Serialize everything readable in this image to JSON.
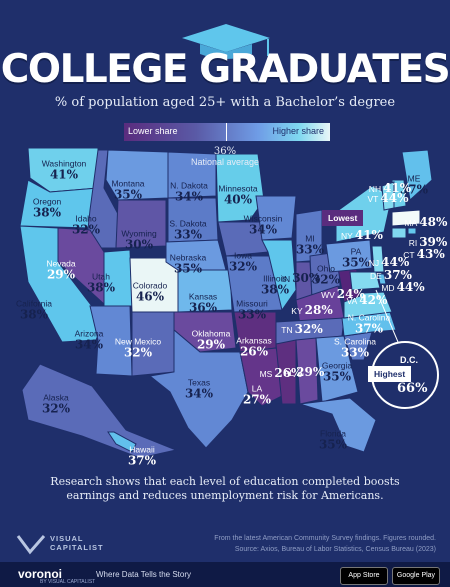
{
  "header": {
    "title": "COLLEGE GRADUATES",
    "subtitle": "% of population aged 25+ with a Bachelor’s degree"
  },
  "legend": {
    "low_label": "Lower share",
    "high_label": "Higher share",
    "national_value": "36%",
    "national_label": "National average"
  },
  "badges": {
    "lowest": "Lowest",
    "highest": "Highest"
  },
  "states": [
    {
      "name": "Washington",
      "value": "41%",
      "color": "#6fd0ec",
      "text": "dark"
    },
    {
      "name": "Oregon",
      "value": "38%",
      "color": "#5fc6ec",
      "text": "dark"
    },
    {
      "name": "California",
      "value": "38%",
      "color": "#5fc6ec",
      "text": "dark"
    },
    {
      "name": "Idaho",
      "value": "32%",
      "color": "#5a6bb8",
      "text": "dark"
    },
    {
      "name": "Nevada",
      "value": "29%",
      "color": "#6a4a9e",
      "text": "light"
    },
    {
      "name": "Montana",
      "value": "35%",
      "color": "#6b9ae0",
      "text": "dark"
    },
    {
      "name": "Wyoming",
      "value": "30%",
      "color": "#5f56a6",
      "text": "dark"
    },
    {
      "name": "Utah",
      "value": "38%",
      "color": "#5fc6ec",
      "text": "dark"
    },
    {
      "name": "Arizona",
      "value": "34%",
      "color": "#6288d4",
      "text": "dark"
    },
    {
      "name": "Colorado",
      "value": "46%",
      "color": "#eaf6f6",
      "text": "dark"
    },
    {
      "name": "New Mexico",
      "value": "32%",
      "color": "#5a6bb8",
      "text": "light"
    },
    {
      "name": "N. Dakota",
      "value": "34%",
      "color": "#6288d4",
      "text": "dark"
    },
    {
      "name": "S. Dakota",
      "value": "33%",
      "color": "#5c7bc8",
      "text": "dark"
    },
    {
      "name": "Nebraska",
      "value": "35%",
      "color": "#6b9ae0",
      "text": "dark"
    },
    {
      "name": "Kansas",
      "value": "36%",
      "color": "#6fb8ec",
      "text": "dark"
    },
    {
      "name": "Oklahoma",
      "value": "29%",
      "color": "#6a4a9e",
      "text": "light"
    },
    {
      "name": "Texas",
      "value": "34%",
      "color": "#6288d4",
      "text": "dark"
    },
    {
      "name": "Minnesota",
      "value": "40%",
      "color": "#66cdea",
      "text": "dark"
    },
    {
      "name": "Iowa",
      "value": "32%",
      "color": "#5a6bb8",
      "text": "dark"
    },
    {
      "name": "Missouri",
      "value": "33%",
      "color": "#5c7bc8",
      "text": "dark"
    },
    {
      "name": "Arkansas",
      "value": "26%",
      "color": "#5e2f80",
      "text": "light"
    },
    {
      "name": "LA",
      "value": "27%",
      "color": "#64358a",
      "text": "light"
    },
    {
      "name": "Wisconsin",
      "value": "34%",
      "color": "#6288d4",
      "text": "dark"
    },
    {
      "name": "Illinois",
      "value": "38%",
      "color": "#5fc6ec",
      "text": "dark"
    },
    {
      "name": "MI",
      "value": "33%",
      "color": "#5c7bc8",
      "text": "dark"
    },
    {
      "name": "IN",
      "value": "30%",
      "color": "#5f56a6",
      "text": "dark"
    },
    {
      "name": "Ohio",
      "value": "32%",
      "color": "#5a6bb8",
      "text": "dark"
    },
    {
      "name": "KY",
      "value": "28%",
      "color": "#68419a",
      "text": "light"
    },
    {
      "name": "TN",
      "value": "32%",
      "color": "#5a6bb8",
      "text": "light"
    },
    {
      "name": "MS",
      "value": "26%",
      "color": "#5e2f80",
      "text": "light"
    },
    {
      "name": "AL",
      "value": "29%",
      "color": "#6a4a9e",
      "text": "light"
    },
    {
      "name": "Georgia",
      "value": "35%",
      "color": "#6b9ae0",
      "text": "dark"
    },
    {
      "name": "Florida",
      "value": "35%",
      "color": "#6b9ae0",
      "text": "dark"
    },
    {
      "name": "S. Carolina",
      "value": "33%",
      "color": "#5c7bc8",
      "text": "light"
    },
    {
      "name": "N. Carolina",
      "value": "37%",
      "color": "#62c0ec",
      "text": "light"
    },
    {
      "name": "VA",
      "value": "42%",
      "color": "#78d4ee",
      "text": "light"
    },
    {
      "name": "WV",
      "value": "24%",
      "color": "#55257a",
      "text": "light"
    },
    {
      "name": "PA",
      "value": "35%",
      "color": "#6b9ae0",
      "text": "dark"
    },
    {
      "name": "NY",
      "value": "41%",
      "color": "#6fd0ec",
      "text": "light"
    },
    {
      "name": "ME",
      "value": "37%",
      "color": "#62c0ec",
      "text": "dark"
    },
    {
      "name": "NH",
      "value": "41%",
      "color": "#6fd0ec",
      "text": "light"
    },
    {
      "name": "VT",
      "value": "44%",
      "color": "#84daf0",
      "text": "light"
    },
    {
      "name": "MA",
      "value": "48%",
      "color": "#f2fafa",
      "text": "light"
    },
    {
      "name": "RI",
      "value": "39%",
      "color": "#64c8ec",
      "text": "light"
    },
    {
      "name": "CT",
      "value": "43%",
      "color": "#80d8f0",
      "text": "light"
    },
    {
      "name": "NJ",
      "value": "44%",
      "color": "#84daf0",
      "text": "light"
    },
    {
      "name": "DE",
      "value": "37%",
      "color": "#62c0ec",
      "text": "light"
    },
    {
      "name": "MD",
      "value": "44%",
      "color": "#84daf0",
      "text": "light"
    },
    {
      "name": "Alaska",
      "value": "32%",
      "color": "#5a6bb8",
      "text": "dark"
    },
    {
      "name": "Hawaii",
      "value": "37%",
      "color": "#62c0ec",
      "text": "light"
    },
    {
      "name": "D.C.",
      "value": "66%",
      "color": "#ffffff",
      "text": "light"
    }
  ],
  "footer": {
    "text": "Research shows that each level of education completed boosts earnings and reduces unemployment risk for Americans.",
    "brand_line1": "VISUAL",
    "brand_line2": "CAPITALIST",
    "source_line1": "From the latest American Community Survey findings. Figures rounded.",
    "source_line2": "Source: Axios, Bureau of Labor Statistics, Census Bureau (2023)",
    "logo": "voronoi",
    "logo_sub": "BY VISUAL CAPITALIST",
    "tagline": "Where Data Tells the Story",
    "app_store": "App Store",
    "google_play": "Google Play"
  }
}
